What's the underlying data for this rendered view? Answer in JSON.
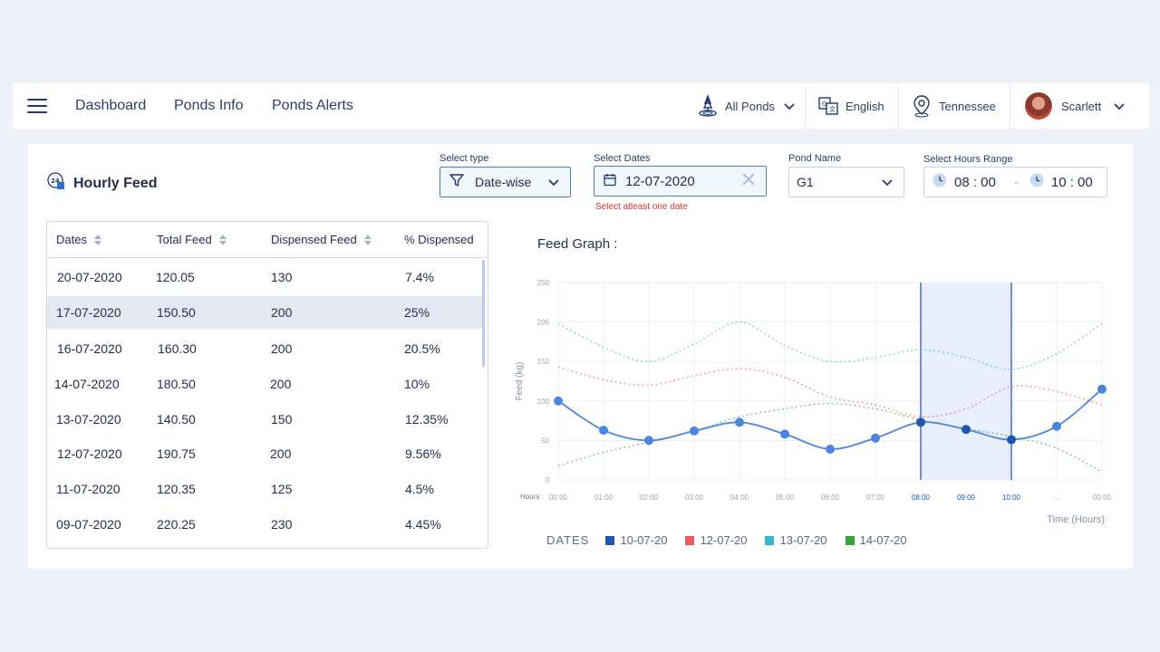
{
  "nav": {
    "links": [
      "Dashboard",
      "Ponds Info",
      "Ponds Alerts"
    ],
    "ponds": "All Ponds",
    "language": "English",
    "location": "Tennessee",
    "user": "Scarlett"
  },
  "card": {
    "title": "Hourly Feed",
    "filters": {
      "type_label": "Select type",
      "type_value": "Date-wise",
      "dates_label": "Select Dates",
      "dates_value": "12-07-2020",
      "dates_error": "Select atleast one date",
      "pond_label": "Pond Name",
      "pond_value": "G1",
      "hours_label": "Select Hours Range",
      "hours_from": "08 : 00",
      "hours_sep": "-",
      "hours_to": "10 : 00"
    },
    "table": {
      "headers": [
        "Dates",
        "Total Feed",
        "Dispensed Feed",
        "% Dispensed"
      ],
      "rows": [
        [
          "20-07-2020",
          "120.05",
          "130",
          "7.4%"
        ],
        [
          "17-07-2020",
          "150.50",
          "200",
          "25%"
        ],
        [
          "16-07-2020",
          "160.30",
          "200",
          "20.5%"
        ],
        [
          "14-07-2020",
          "180.50",
          "200",
          "10%"
        ],
        [
          "13-07-2020",
          "140.50",
          "150",
          "12.35%"
        ],
        [
          "12-07-2020",
          "190.75",
          "200",
          "9.56%"
        ],
        [
          "11-07-2020",
          "120.35",
          "125",
          "4.5%"
        ],
        [
          "09-07-2020",
          "220.25",
          "230",
          "4.45%"
        ]
      ],
      "selected_row": 1
    }
  },
  "chart_data": {
    "type": "line",
    "title": "Feed Graph :",
    "ylabel": "Feed (kg)",
    "xlabel": "Time (Hours)",
    "x_axis_prefix": "Hours",
    "x": [
      "00:00",
      "01:00",
      "02:00",
      "03:00",
      "04:00",
      "05:00",
      "06:00",
      "07:00",
      "08:00",
      "09:00",
      "10:00",
      "....",
      "00:00"
    ],
    "y_ticks": [
      0,
      50,
      100,
      150,
      200,
      250
    ],
    "ylim": [
      0,
      250
    ],
    "highlight_range": [
      "08:00",
      "10:00"
    ],
    "grid": true,
    "legend_title": "DATES",
    "series": [
      {
        "name": "10-07-20",
        "color": "#1f56b3",
        "style": "solid",
        "values": [
          100,
          63,
          50,
          62,
          73,
          58,
          39,
          53,
          73,
          64,
          51,
          68,
          115
        ]
      },
      {
        "name": "12-07-20",
        "color": "#e85a66",
        "style": "dotted",
        "values": [
          143,
          127,
          120,
          132,
          141,
          130,
          105,
          95,
          80,
          90,
          118,
          112,
          95
        ]
      },
      {
        "name": "13-07-20",
        "color": "#3bb6c9",
        "style": "dotted",
        "values": [
          198,
          168,
          150,
          172,
          200,
          170,
          150,
          155,
          165,
          155,
          140,
          160,
          198
        ]
      },
      {
        "name": "14-07-20",
        "color": "#36a33b",
        "style": "dotted",
        "values": [
          18,
          35,
          48,
          62,
          80,
          90,
          97,
          90,
          76,
          65,
          55,
          40,
          10
        ]
      }
    ],
    "line_color": "#4a86e0",
    "highlight_color": "#e8eefb"
  }
}
